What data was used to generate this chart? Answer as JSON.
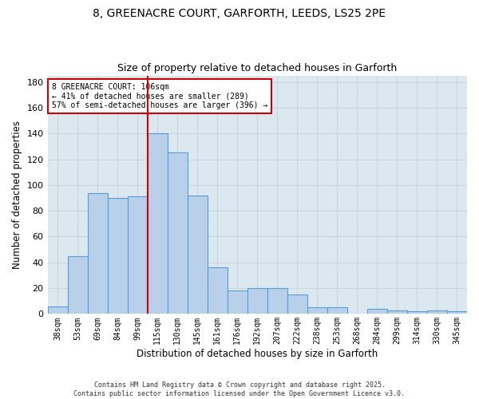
{
  "title_line1": "8, GREENACRE COURT, GARFORTH, LEEDS, LS25 2PE",
  "title_line2": "Size of property relative to detached houses in Garforth",
  "xlabel": "Distribution of detached houses by size in Garforth",
  "ylabel": "Number of detached properties",
  "categories": [
    "38sqm",
    "53sqm",
    "69sqm",
    "84sqm",
    "99sqm",
    "115sqm",
    "130sqm",
    "145sqm",
    "161sqm",
    "176sqm",
    "192sqm",
    "207sqm",
    "222sqm",
    "238sqm",
    "253sqm",
    "268sqm",
    "284sqm",
    "299sqm",
    "314sqm",
    "330sqm",
    "345sqm"
  ],
  "values": [
    6,
    45,
    94,
    90,
    91,
    140,
    125,
    92,
    36,
    18,
    20,
    20,
    15,
    5,
    5,
    0,
    4,
    3,
    2,
    3,
    2
  ],
  "bar_color": "#b8d0ea",
  "bar_edge_color": "#5b9bd5",
  "grid_color": "#c8d4e0",
  "bg_color": "#dce8f0",
  "fig_bg_color": "#ffffff",
  "vline_x": 4.5,
  "vline_color": "#cc0000",
  "annotation_line1": "8 GREENACRE COURT: 106sqm",
  "annotation_line2": "← 41% of detached houses are smaller (289)",
  "annotation_line3": "57% of semi-detached houses are larger (396) →",
  "annotation_box_color": "#cc0000",
  "footer_line1": "Contains HM Land Registry data © Crown copyright and database right 2025.",
  "footer_line2": "Contains public sector information licensed under the Open Government Licence v3.0.",
  "ylim": [
    0,
    185
  ],
  "yticks": [
    0,
    20,
    40,
    60,
    80,
    100,
    120,
    140,
    160,
    180
  ]
}
